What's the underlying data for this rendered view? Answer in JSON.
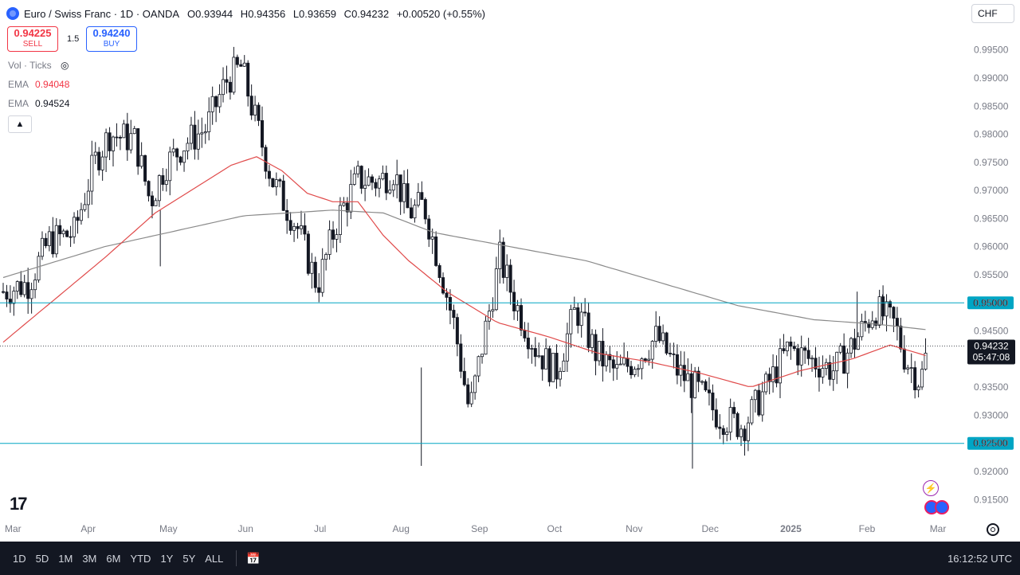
{
  "header": {
    "symbol": "Euro / Swiss Franc · 1D · OANDA",
    "open_label": "O",
    "open": "0.93944",
    "high_label": "H",
    "high": "0.94356",
    "low_label": "L",
    "low": "0.93659",
    "close_label": "C",
    "close": "0.94232",
    "change": "+0.00520 (+0.55%)"
  },
  "trade": {
    "sell_price": "0.94225",
    "sell_label": "SELL",
    "spread": "1.5",
    "buy_price": "0.94240",
    "buy_label": "BUY"
  },
  "legend": {
    "vol": "Vol · Ticks",
    "ema1_label": "EMA",
    "ema1_value": "0.94048",
    "ema2_label": "EMA",
    "ema2_value": "0.94524"
  },
  "currency": "CHF",
  "colors": {
    "up": "#131722",
    "down": "#131722",
    "ema_fast": "#e04a4a",
    "ema_slow": "#8a8a8a",
    "hline": "#00a5c4",
    "price_tag": "#131722"
  },
  "timeframes": [
    "1D",
    "5D",
    "1M",
    "3M",
    "6M",
    "YTD",
    "1Y",
    "5Y",
    "ALL"
  ],
  "clock": "16:12:52 UTC",
  "price_tag": {
    "price": "0.94232",
    "countdown": "05:47:08"
  },
  "chart_data": {
    "type": "candlestick",
    "title": "Euro / Swiss Franc · 1D · OANDA",
    "y_ticks": [
      0.995,
      0.99,
      0.985,
      0.98,
      0.975,
      0.97,
      0.965,
      0.96,
      0.955,
      0.95,
      0.945,
      0.94,
      0.935,
      0.93,
      0.925,
      0.92,
      0.915
    ],
    "y_tick_labels": [
      "0.99500",
      "0.99000",
      "0.98500",
      "0.98000",
      "0.97500",
      "0.97000",
      "0.96500",
      "0.96000",
      "0.95500",
      "0.95000",
      "0.94500",
      "0.94000",
      "0.93500",
      "0.93000",
      "0.92500",
      "0.92000",
      "0.91500"
    ],
    "ylim": [
      0.9115,
      0.9985
    ],
    "x_labels": [
      "Mar",
      "Apr",
      "May",
      "Jun",
      "Jul",
      "Aug",
      "Sep",
      "Oct",
      "Nov",
      "Dec",
      "2025",
      "Feb",
      "Mar"
    ],
    "x_label_days": [
      0,
      30,
      61,
      92,
      122,
      153,
      184,
      214,
      245,
      275,
      306,
      337,
      365
    ],
    "horizontal_levels": [
      {
        "value": 0.95,
        "label": "0.95000"
      },
      {
        "value": 0.925,
        "label": "0.92500"
      }
    ],
    "current_price": 0.94232,
    "price_series_anchors": [
      [
        0,
        0.952
      ],
      [
        10,
        0.9535
      ],
      [
        18,
        0.961
      ],
      [
        28,
        0.9625
      ],
      [
        36,
        0.975
      ],
      [
        42,
        0.98
      ],
      [
        52,
        0.979
      ],
      [
        58,
        0.968
      ],
      [
        64,
        0.9745
      ],
      [
        72,
        0.9785
      ],
      [
        80,
        0.981
      ],
      [
        88,
        0.9895
      ],
      [
        94,
        0.992
      ],
      [
        98,
        0.985
      ],
      [
        106,
        0.972
      ],
      [
        116,
        0.9635
      ],
      [
        124,
        0.953
      ],
      [
        132,
        0.965
      ],
      [
        140,
        0.972
      ],
      [
        148,
        0.9715
      ],
      [
        154,
        0.9735
      ],
      [
        160,
        0.966
      ],
      [
        166,
        0.9675
      ],
      [
        172,
        0.957
      ],
      [
        178,
        0.946
      ],
      [
        184,
        0.9305
      ],
      [
        190,
        0.9445
      ],
      [
        196,
        0.958
      ],
      [
        202,
        0.95
      ],
      [
        210,
        0.942
      ],
      [
        218,
        0.9375
      ],
      [
        226,
        0.949
      ],
      [
        234,
        0.941
      ],
      [
        242,
        0.9375
      ],
      [
        250,
        0.94
      ],
      [
        258,
        0.944
      ],
      [
        266,
        0.938
      ],
      [
        274,
        0.9345
      ],
      [
        282,
        0.93
      ],
      [
        292,
        0.928
      ],
      [
        300,
        0.934
      ],
      [
        310,
        0.942
      ],
      [
        318,
        0.94
      ],
      [
        328,
        0.938
      ],
      [
        336,
        0.943
      ],
      [
        344,
        0.949
      ],
      [
        352,
        0.946
      ],
      [
        356,
        0.94
      ],
      [
        362,
        0.936
      ],
      [
        365,
        0.9423
      ]
    ],
    "ema_fast_anchors": [
      [
        0,
        0.943
      ],
      [
        40,
        0.958
      ],
      [
        60,
        0.966
      ],
      [
        90,
        0.9745
      ],
      [
        100,
        0.976
      ],
      [
        110,
        0.9735
      ],
      [
        120,
        0.9695
      ],
      [
        130,
        0.968
      ],
      [
        140,
        0.968
      ],
      [
        150,
        0.962
      ],
      [
        160,
        0.9575
      ],
      [
        175,
        0.952
      ],
      [
        195,
        0.9465
      ],
      [
        215,
        0.944
      ],
      [
        235,
        0.941
      ],
      [
        255,
        0.9395
      ],
      [
        275,
        0.9375
      ],
      [
        295,
        0.935
      ],
      [
        315,
        0.938
      ],
      [
        335,
        0.94
      ],
      [
        350,
        0.9425
      ],
      [
        365,
        0.9405
      ]
    ],
    "ema_slow_anchors": [
      [
        0,
        0.9545
      ],
      [
        40,
        0.96
      ],
      [
        70,
        0.963
      ],
      [
        95,
        0.9655
      ],
      [
        130,
        0.9665
      ],
      [
        150,
        0.966
      ],
      [
        170,
        0.9625
      ],
      [
        200,
        0.96
      ],
      [
        230,
        0.9575
      ],
      [
        260,
        0.9535
      ],
      [
        290,
        0.9495
      ],
      [
        320,
        0.947
      ],
      [
        345,
        0.9462
      ],
      [
        365,
        0.9452
      ]
    ]
  }
}
